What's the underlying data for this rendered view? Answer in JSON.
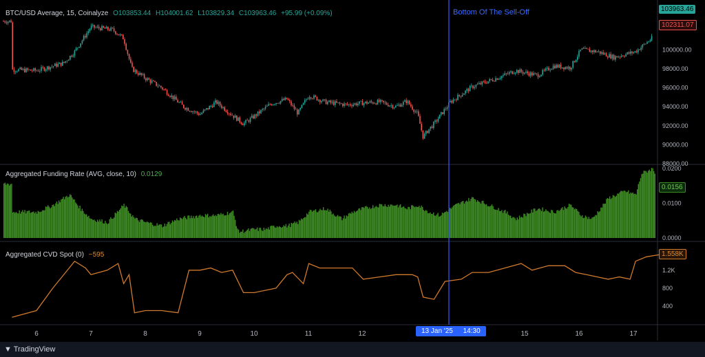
{
  "annotation": "Bottom Of The Sell-Off",
  "crosshair_date": "13 Jan '25",
  "crosshair_time": "14:30",
  "footer_brand": "TradingView",
  "colors": {
    "price_up": "#26a69a",
    "price_down": "#ef5350",
    "funding": "#3e8e24",
    "cvd": "#d17a2b",
    "vline": "#3a5cff"
  },
  "price_pane": {
    "symbol": "BTC/USD Average, 15, Coinalyze",
    "o": "O103853.44",
    "h": "H104001.62",
    "l": "L103829.34",
    "c": "C103963.46",
    "chg": "+95.99 (+0.09%)",
    "last_label": "103963.46",
    "marker_label": "102311.07"
  },
  "funding_pane": {
    "title": "Aggregated Funding Rate (AVG, close, 10)",
    "value": "0.0129",
    "last_label": "0.0156"
  },
  "cvd_pane": {
    "title": "Aggregated CVD Spot (0)",
    "value": "−595",
    "last_label": "1.558K"
  },
  "chart_data": [
    {
      "type": "line",
      "title": "BTC/USD Average, 15, Coinalyze",
      "x": [
        5.55,
        6.0,
        6.5,
        6.7,
        7.0,
        7.4,
        7.6,
        7.75,
        8.0,
        8.3,
        8.7,
        9.0,
        9.3,
        9.6,
        9.8,
        10.0,
        10.3,
        10.6,
        10.8,
        11.0,
        11.3,
        11.7,
        12.0,
        12.3,
        12.6,
        12.8,
        13.0,
        13.1,
        13.2,
        13.3,
        13.6,
        14.0,
        14.4,
        14.8,
        15.2,
        15.5,
        15.8,
        16.0,
        16.3,
        16.6,
        16.8,
        17.0,
        17.3,
        17.5
      ],
      "y": [
        97900,
        97800,
        98600,
        99800,
        102400,
        102100,
        101200,
        98000,
        97000,
        96000,
        94000,
        93200,
        94500,
        93100,
        92200,
        93000,
        94300,
        94800,
        93300,
        95200,
        94500,
        94200,
        94400,
        94500,
        94000,
        94600,
        93200,
        90800,
        91600,
        92200,
        94500,
        96100,
        96900,
        97800,
        97300,
        98300,
        98100,
        100000,
        99800,
        99200,
        99500,
        99800,
        101200,
        103000
      ],
      "ylim": [
        88000,
        104800
      ],
      "yticks": [
        "100000.00",
        "98000.00",
        "96000.00",
        "94000.00",
        "92000.00",
        "90000.00",
        "88000.00"
      ],
      "xticks": [
        "6",
        "7",
        "8",
        "9",
        "10",
        "11",
        "12",
        "15",
        "16",
        "17"
      ]
    },
    {
      "type": "area",
      "title": "Aggregated Funding Rate (AVG, close, 10)",
      "x": [
        5.55,
        6.0,
        6.3,
        6.6,
        6.8,
        7.0,
        7.3,
        7.6,
        7.8,
        8.0,
        8.3,
        8.6,
        9.0,
        9.3,
        9.6,
        9.7,
        10.0,
        10.2,
        10.4,
        10.6,
        10.8,
        11.0,
        11.3,
        11.6,
        11.8,
        12.0,
        12.3,
        12.6,
        12.8,
        13.0,
        13.2,
        13.4,
        13.7,
        14.0,
        14.3,
        14.6,
        14.8,
        15.2,
        15.5,
        15.8,
        16.0,
        16.2,
        16.5,
        16.8,
        17.0,
        17.1,
        17.3,
        17.5
      ],
      "y": [
        0.0075,
        0.0075,
        0.0095,
        0.0125,
        0.0085,
        0.0055,
        0.0045,
        0.0095,
        0.0055,
        0.0045,
        0.0035,
        0.0055,
        0.0065,
        0.0065,
        0.0075,
        0.0018,
        0.0025,
        0.0025,
        0.0035,
        0.0035,
        0.0045,
        0.0075,
        0.0085,
        0.0055,
        0.0075,
        0.0085,
        0.0095,
        0.0095,
        0.0085,
        0.0095,
        0.0075,
        0.0065,
        0.0095,
        0.0115,
        0.0095,
        0.0075,
        0.0055,
        0.0085,
        0.0075,
        0.0095,
        0.0065,
        0.0055,
        0.0115,
        0.0135,
        0.0125,
        0.0185,
        0.02,
        0.0156
      ],
      "ylim": [
        0,
        0.021
      ],
      "yticks": [
        "0.0200",
        "0.0100",
        "0.0000"
      ]
    },
    {
      "type": "line",
      "title": "Aggregated CVD Spot (0)",
      "x": [
        5.55,
        6.0,
        6.3,
        6.6,
        6.7,
        6.9,
        7.0,
        7.3,
        7.5,
        7.6,
        7.7,
        7.8,
        8.0,
        8.3,
        8.6,
        8.8,
        9.0,
        9.2,
        9.4,
        9.6,
        9.8,
        10.0,
        10.2,
        10.4,
        10.6,
        10.7,
        10.9,
        11.0,
        11.2,
        11.5,
        11.8,
        12.0,
        12.3,
        12.6,
        12.9,
        13.0,
        13.1,
        13.3,
        13.5,
        13.8,
        14.0,
        14.3,
        14.6,
        14.9,
        15.1,
        15.4,
        15.7,
        15.9,
        16.1,
        16.3,
        16.5,
        16.7,
        16.9,
        17.0,
        17.2,
        17.5
      ],
      "y": [
        150,
        300,
        800,
        1250,
        1400,
        1250,
        1100,
        1200,
        1350,
        900,
        1100,
        250,
        300,
        300,
        250,
        1200,
        1200,
        1250,
        1150,
        1200,
        700,
        700,
        750,
        800,
        1100,
        1150,
        900,
        1350,
        1250,
        1250,
        1250,
        1000,
        1050,
        1100,
        1100,
        1050,
        600,
        550,
        950,
        1000,
        1150,
        1150,
        1250,
        1350,
        1200,
        1300,
        1300,
        1150,
        1100,
        1050,
        1000,
        1050,
        1000,
        1400,
        1500,
        1558
      ],
      "ylim": [
        0,
        1750
      ],
      "yticks": [
        "1.2K",
        "800",
        "400"
      ]
    }
  ]
}
